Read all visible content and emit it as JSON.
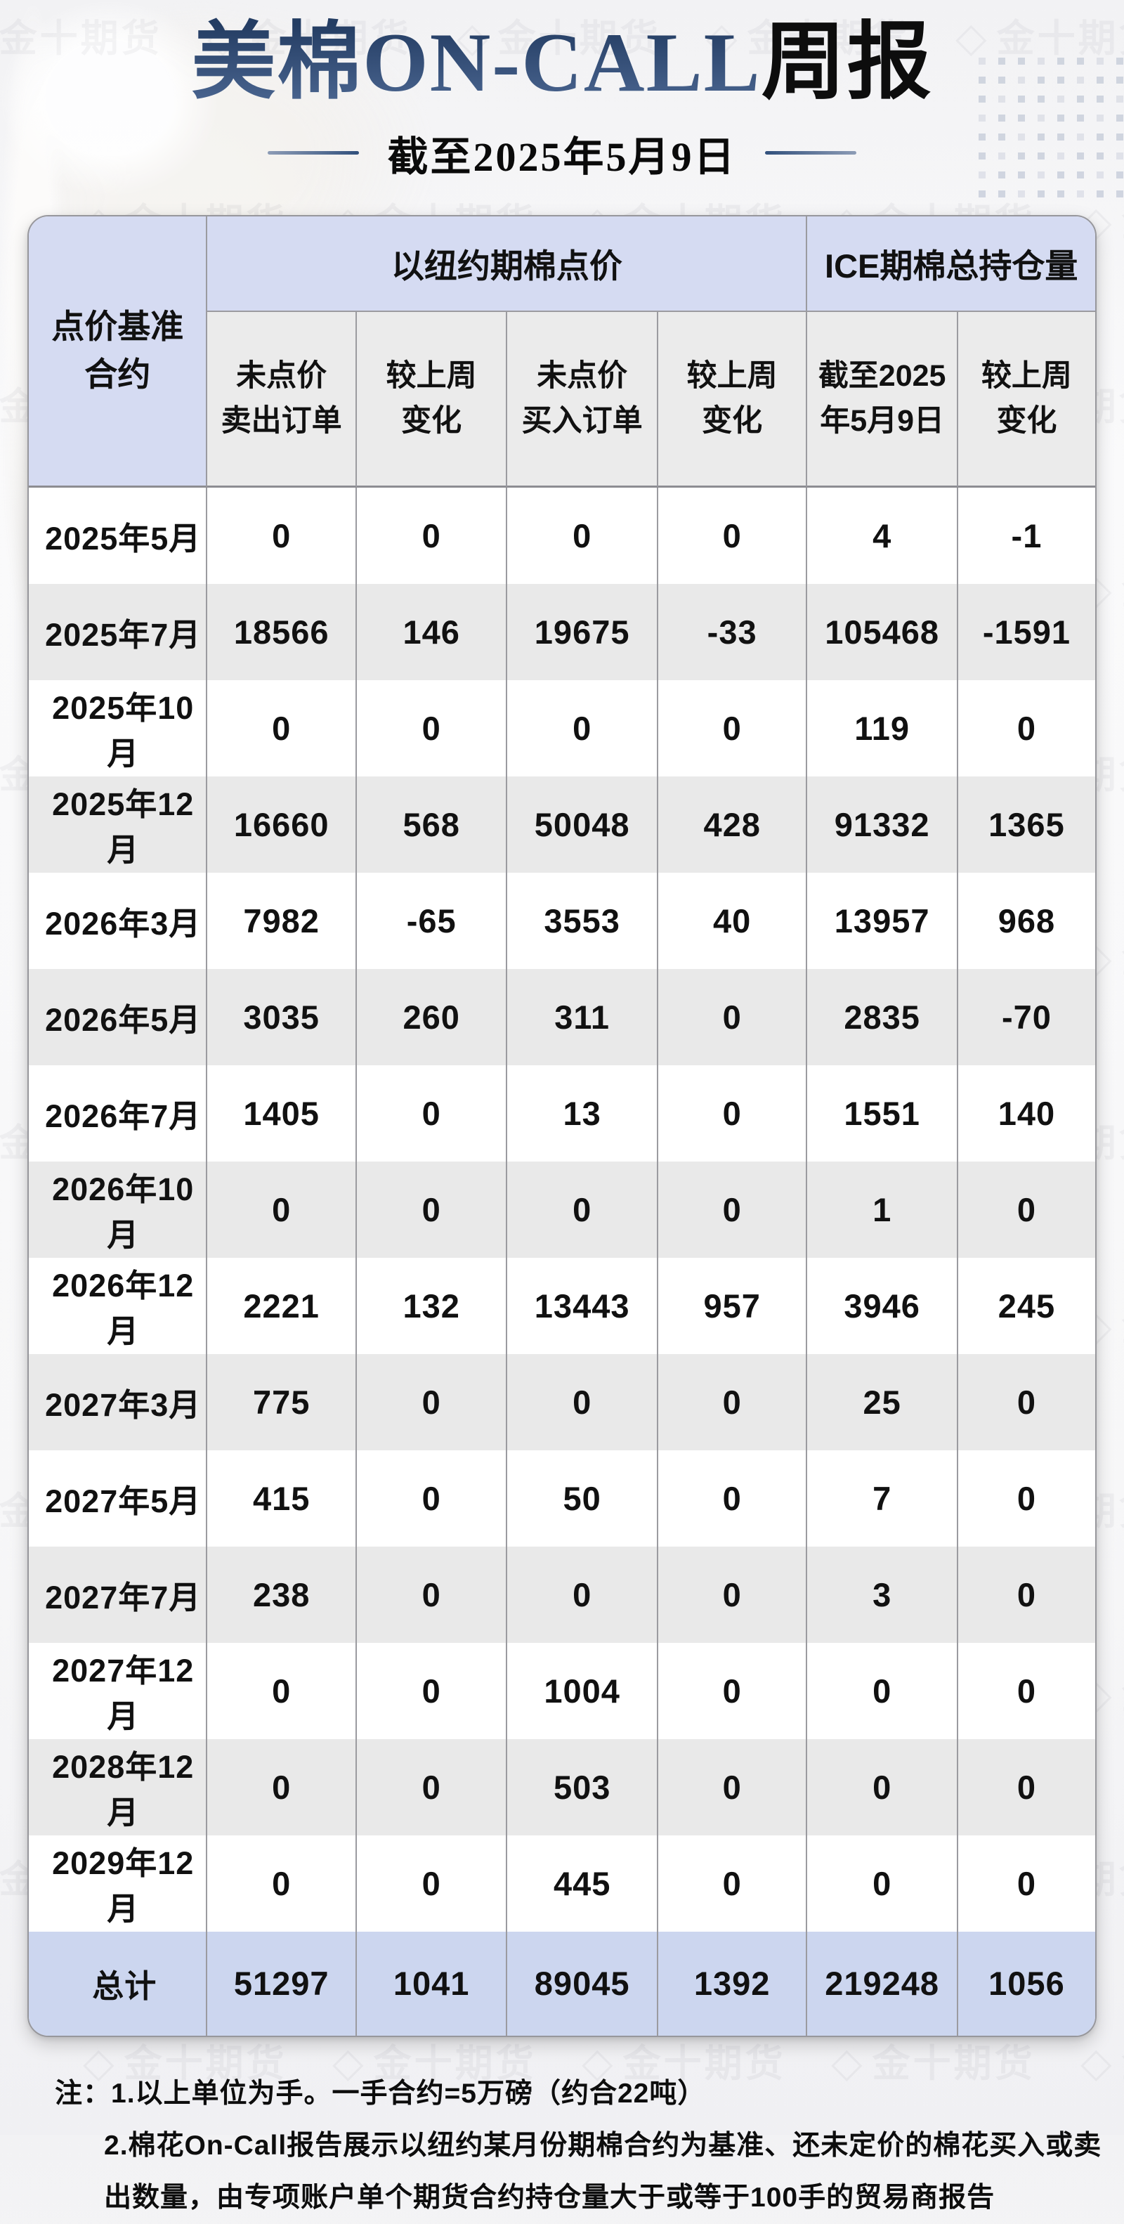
{
  "page": {
    "title_main": "美棉ON-CALL",
    "title_suffix": "周报",
    "subtitle": "截至2025年5月9日",
    "watermark_text": "金十期货",
    "colors": {
      "accent_navy": "#2e4a73",
      "value_up_red": "#c21414",
      "value_down_green": "#1a6e1a",
      "group_header_bg": "#d5dbf2",
      "subheader_bg": "#ebebeb",
      "row_alt_bg": "#e9e9e9",
      "total_row_bg": "#ccd6ef"
    }
  },
  "table": {
    "corner_header_lines": [
      "点价基准",
      "合约"
    ],
    "group_headers": [
      {
        "label": "以纽约期棉点价",
        "colspan": 4
      },
      {
        "label": "ICE期棉总持仓量",
        "colspan": 2
      }
    ],
    "sub_headers": [
      [
        "未点价",
        "卖出订单"
      ],
      [
        "较上周",
        "变化"
      ],
      [
        "未点价",
        "买入订单"
      ],
      [
        "较上周",
        "变化"
      ],
      [
        "截至2025",
        "年5月9日"
      ],
      [
        "较上周",
        "变化"
      ]
    ],
    "rows": [
      {
        "label": "2025年5月",
        "values": [
          {
            "v": "0"
          },
          {
            "v": "0"
          },
          {
            "v": "0"
          },
          {
            "v": "0"
          },
          {
            "v": "4"
          },
          {
            "v": "-1",
            "c": "green"
          }
        ]
      },
      {
        "label": "2025年7月",
        "values": [
          {
            "v": "18566"
          },
          {
            "v": "146",
            "c": "red"
          },
          {
            "v": "19675"
          },
          {
            "v": "-33",
            "c": "green"
          },
          {
            "v": "105468"
          },
          {
            "v": "-1591",
            "c": "green"
          }
        ]
      },
      {
        "label": "2025年10月",
        "values": [
          {
            "v": "0"
          },
          {
            "v": "0"
          },
          {
            "v": "0"
          },
          {
            "v": "0"
          },
          {
            "v": "119"
          },
          {
            "v": "0"
          }
        ]
      },
      {
        "label": "2025年12月",
        "values": [
          {
            "v": "16660"
          },
          {
            "v": "568",
            "c": "red"
          },
          {
            "v": "50048"
          },
          {
            "v": "428",
            "c": "red"
          },
          {
            "v": "91332"
          },
          {
            "v": "1365",
            "c": "red"
          }
        ]
      },
      {
        "label": "2026年3月",
        "values": [
          {
            "v": "7982"
          },
          {
            "v": "-65",
            "c": "green"
          },
          {
            "v": "3553"
          },
          {
            "v": "40",
            "c": "red"
          },
          {
            "v": "13957"
          },
          {
            "v": "968",
            "c": "red"
          }
        ]
      },
      {
        "label": "2026年5月",
        "values": [
          {
            "v": "3035"
          },
          {
            "v": "260",
            "c": "red"
          },
          {
            "v": "311"
          },
          {
            "v": "0"
          },
          {
            "v": "2835"
          },
          {
            "v": "-70",
            "c": "green"
          }
        ]
      },
      {
        "label": "2026年7月",
        "values": [
          {
            "v": "1405"
          },
          {
            "v": "0"
          },
          {
            "v": "13"
          },
          {
            "v": "0"
          },
          {
            "v": "1551"
          },
          {
            "v": "140",
            "c": "red"
          }
        ]
      },
      {
        "label": "2026年10月",
        "values": [
          {
            "v": "0"
          },
          {
            "v": "0"
          },
          {
            "v": "0"
          },
          {
            "v": "0"
          },
          {
            "v": "1"
          },
          {
            "v": "0"
          }
        ]
      },
      {
        "label": "2026年12月",
        "values": [
          {
            "v": "2221"
          },
          {
            "v": "132",
            "c": "red"
          },
          {
            "v": "13443"
          },
          {
            "v": "957",
            "c": "red"
          },
          {
            "v": "3946"
          },
          {
            "v": "245",
            "c": "red"
          }
        ]
      },
      {
        "label": "2027年3月",
        "values": [
          {
            "v": "775"
          },
          {
            "v": "0"
          },
          {
            "v": "0"
          },
          {
            "v": "0"
          },
          {
            "v": "25"
          },
          {
            "v": "0"
          }
        ]
      },
      {
        "label": "2027年5月",
        "values": [
          {
            "v": "415"
          },
          {
            "v": "0"
          },
          {
            "v": "50"
          },
          {
            "v": "0"
          },
          {
            "v": "7"
          },
          {
            "v": "0"
          }
        ]
      },
      {
        "label": "2027年7月",
        "values": [
          {
            "v": "238"
          },
          {
            "v": "0"
          },
          {
            "v": "0"
          },
          {
            "v": "0"
          },
          {
            "v": "3"
          },
          {
            "v": "0"
          }
        ]
      },
      {
        "label": "2027年12月",
        "values": [
          {
            "v": "0"
          },
          {
            "v": "0"
          },
          {
            "v": "1004"
          },
          {
            "v": "0"
          },
          {
            "v": "0"
          },
          {
            "v": "0"
          }
        ]
      },
      {
        "label": "2028年12月",
        "values": [
          {
            "v": "0"
          },
          {
            "v": "0"
          },
          {
            "v": "503"
          },
          {
            "v": "0"
          },
          {
            "v": "0"
          },
          {
            "v": "0"
          }
        ]
      },
      {
        "label": "2029年12月",
        "values": [
          {
            "v": "0"
          },
          {
            "v": "0"
          },
          {
            "v": "445"
          },
          {
            "v": "0"
          },
          {
            "v": "0"
          },
          {
            "v": "0"
          }
        ]
      }
    ],
    "total_row": {
      "label": "总计",
      "values": [
        {
          "v": "51297"
        },
        {
          "v": "1041",
          "c": "red"
        },
        {
          "v": "89045"
        },
        {
          "v": "1392",
          "c": "red"
        },
        {
          "v": "219248"
        },
        {
          "v": "1056",
          "c": "red"
        }
      ]
    }
  },
  "notes": {
    "line1": "注：1.以上单位为手。一手合约=5万磅（约合22吨）",
    "line2": "2.棉花On-Call报告展示以纽约某月份期棉合约为基准、还未定价的棉花买入或卖",
    "line3": "出数量，由专项账户单个期货合约持仓量大于或等于100手的贸易商报告"
  }
}
